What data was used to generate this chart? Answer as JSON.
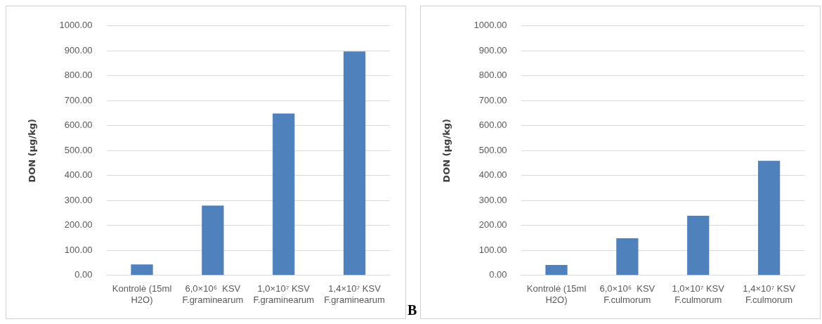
{
  "chart_data": [
    {
      "type": "bar",
      "ylabel": "DON (µg/kg)",
      "categories": [
        "Kontrolė (15ml H2O)",
        "6,0×10⁶  KSV F.graminearum",
        "1,0×10⁷ KSV F.graminearum",
        "1,4×10⁷ KSV F.graminearum"
      ],
      "series": [
        {
          "color": "#4f81bd",
          "values": [
            44,
            280,
            649,
            897
          ]
        }
      ],
      "ylim": [
        0,
        1000
      ],
      "yticks": [
        {
          "value": 0,
          "label": "0.00"
        },
        {
          "value": 100,
          "label": "100.00"
        },
        {
          "value": 200,
          "label": "200.00"
        },
        {
          "value": 300,
          "label": "300.00"
        },
        {
          "value": 400,
          "label": "400.00"
        },
        {
          "value": 500,
          "label": "500.00"
        },
        {
          "value": 600,
          "label": "600.00"
        },
        {
          "value": 700,
          "label": "700.00"
        },
        {
          "value": 800,
          "label": "800.00"
        },
        {
          "value": 900,
          "label": "900.00"
        },
        {
          "value": 1000,
          "label": "1000.00"
        }
      ],
      "grid": "y",
      "legend": false
    },
    {
      "type": "bar",
      "ylabel": "DON (µg/kg)",
      "categories": [
        "Kontrolė (15ml H2O)",
        "6,0×10⁶  KSV F.culmorum",
        "1,0×10⁷ KSV F.culmorum",
        "1,4×10⁷ KSV F.culmorum"
      ],
      "series": [
        {
          "color": "#4f81bd",
          "values": [
            42,
            149,
            239,
            459
          ]
        }
      ],
      "ylim": [
        0,
        1000
      ],
      "yticks": [
        {
          "value": 0,
          "label": "0.00"
        },
        {
          "value": 100,
          "label": "100.00"
        },
        {
          "value": 200,
          "label": "200.00"
        },
        {
          "value": 300,
          "label": "300.00"
        },
        {
          "value": 400,
          "label": "400.00"
        },
        {
          "value": 500,
          "label": "500.00"
        },
        {
          "value": 600,
          "label": "600.00"
        },
        {
          "value": 700,
          "label": "700.00"
        },
        {
          "value": 800,
          "label": "800.00"
        },
        {
          "value": 900,
          "label": "900.00"
        },
        {
          "value": 1000,
          "label": "1000.00"
        }
      ],
      "grid": "y",
      "legend": false,
      "annotations": [
        "B"
      ]
    }
  ]
}
